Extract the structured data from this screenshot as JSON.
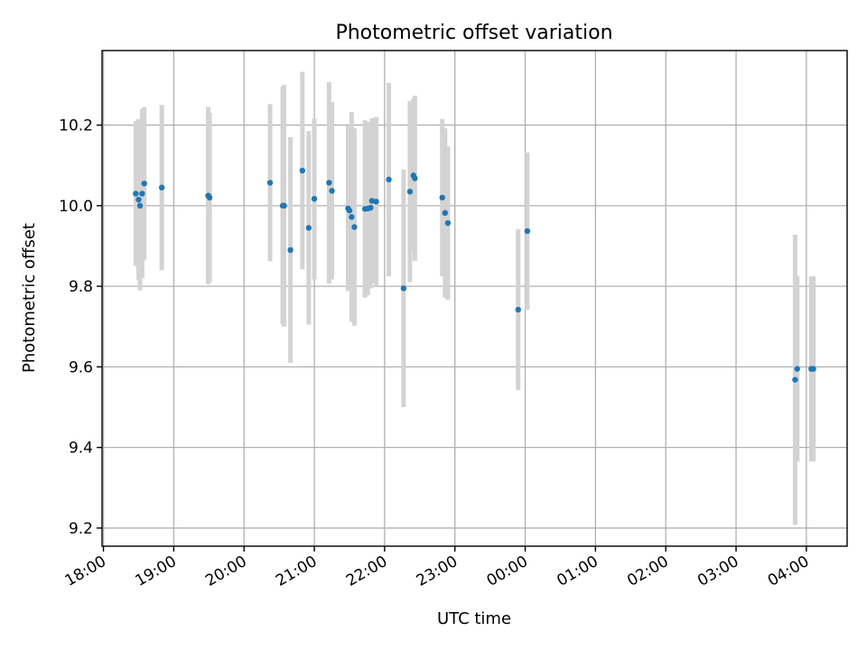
{
  "chart_data": {
    "type": "scatter",
    "title": "Photometric offset variation",
    "xlabel": "UTC time",
    "ylabel": "Photometric offset",
    "x_unit": "hours (UTC, continuing past midnight)",
    "xlim": [
      17.98,
      28.58
    ],
    "ylim": [
      9.155,
      10.385
    ],
    "grid": true,
    "legend": "none",
    "colors": {
      "points": "#1f77b4",
      "errorbars": "#d3d3d3",
      "grid": "#b0b0b0"
    },
    "x_ticks": [
      {
        "value": 18,
        "label": "18:00"
      },
      {
        "value": 19,
        "label": "19:00"
      },
      {
        "value": 20,
        "label": "20:00"
      },
      {
        "value": 21,
        "label": "21:00"
      },
      {
        "value": 22,
        "label": "22:00"
      },
      {
        "value": 23,
        "label": "23:00"
      },
      {
        "value": 24,
        "label": "00:00"
      },
      {
        "value": 25,
        "label": "01:00"
      },
      {
        "value": 26,
        "label": "02:00"
      },
      {
        "value": 27,
        "label": "03:00"
      },
      {
        "value": 28,
        "label": "04:00"
      }
    ],
    "y_ticks": [
      {
        "value": 9.2,
        "label": "9.2"
      },
      {
        "value": 9.4,
        "label": "9.4"
      },
      {
        "value": 9.6,
        "label": "9.6"
      },
      {
        "value": 9.8,
        "label": "9.8"
      },
      {
        "value": 10.0,
        "label": "10.0"
      },
      {
        "value": 10.2,
        "label": "10.2"
      }
    ],
    "points": [
      {
        "x": 18.46,
        "y": 10.03,
        "err": 0.18
      },
      {
        "x": 18.5,
        "y": 10.015,
        "err": 0.2
      },
      {
        "x": 18.52,
        "y": 10.0,
        "err": 0.21
      },
      {
        "x": 18.55,
        "y": 10.03,
        "err": 0.21
      },
      {
        "x": 18.58,
        "y": 10.055,
        "err": 0.19
      },
      {
        "x": 18.83,
        "y": 10.045,
        "err": 0.205
      },
      {
        "x": 19.49,
        "y": 10.025,
        "err": 0.22
      },
      {
        "x": 19.51,
        "y": 10.02,
        "err": 0.21
      },
      {
        "x": 20.37,
        "y": 10.057,
        "err": 0.195
      },
      {
        "x": 20.55,
        "y": 10.0,
        "err": 0.295
      },
      {
        "x": 20.57,
        "y": 10.0,
        "err": 0.3
      },
      {
        "x": 20.66,
        "y": 9.89,
        "err": 0.28
      },
      {
        "x": 20.83,
        "y": 10.087,
        "err": 0.245
      },
      {
        "x": 20.92,
        "y": 9.945,
        "err": 0.24
      },
      {
        "x": 21.0,
        "y": 10.017,
        "err": 0.2
      },
      {
        "x": 21.21,
        "y": 10.057,
        "err": 0.25
      },
      {
        "x": 21.25,
        "y": 10.037,
        "err": 0.22
      },
      {
        "x": 21.48,
        "y": 9.993,
        "err": 0.205
      },
      {
        "x": 21.5,
        "y": 9.988,
        "err": 0.2
      },
      {
        "x": 21.53,
        "y": 9.972,
        "err": 0.26
      },
      {
        "x": 21.57,
        "y": 9.947,
        "err": 0.245
      },
      {
        "x": 21.72,
        "y": 9.992,
        "err": 0.22
      },
      {
        "x": 21.76,
        "y": 9.993,
        "err": 0.215
      },
      {
        "x": 21.8,
        "y": 9.995,
        "err": 0.2
      },
      {
        "x": 21.82,
        "y": 10.012,
        "err": 0.205
      },
      {
        "x": 21.88,
        "y": 10.01,
        "err": 0.21
      },
      {
        "x": 22.06,
        "y": 10.065,
        "err": 0.24
      },
      {
        "x": 22.27,
        "y": 9.795,
        "err": 0.295
      },
      {
        "x": 22.36,
        "y": 10.035,
        "err": 0.225
      },
      {
        "x": 22.41,
        "y": 10.075,
        "err": 0.19
      },
      {
        "x": 22.43,
        "y": 10.068,
        "err": 0.205
      },
      {
        "x": 22.82,
        "y": 10.02,
        "err": 0.195
      },
      {
        "x": 22.86,
        "y": 9.982,
        "err": 0.21
      },
      {
        "x": 22.9,
        "y": 9.957,
        "err": 0.19
      },
      {
        "x": 23.9,
        "y": 9.742,
        "err": 0.2
      },
      {
        "x": 24.03,
        "y": 9.937,
        "err": 0.195
      },
      {
        "x": 27.84,
        "y": 9.568,
        "err": 0.36
      },
      {
        "x": 27.87,
        "y": 9.595,
        "err": 0.23
      },
      {
        "x": 28.07,
        "y": 9.595,
        "err": 0.23
      },
      {
        "x": 28.1,
        "y": 9.595,
        "err": 0.23
      }
    ]
  }
}
